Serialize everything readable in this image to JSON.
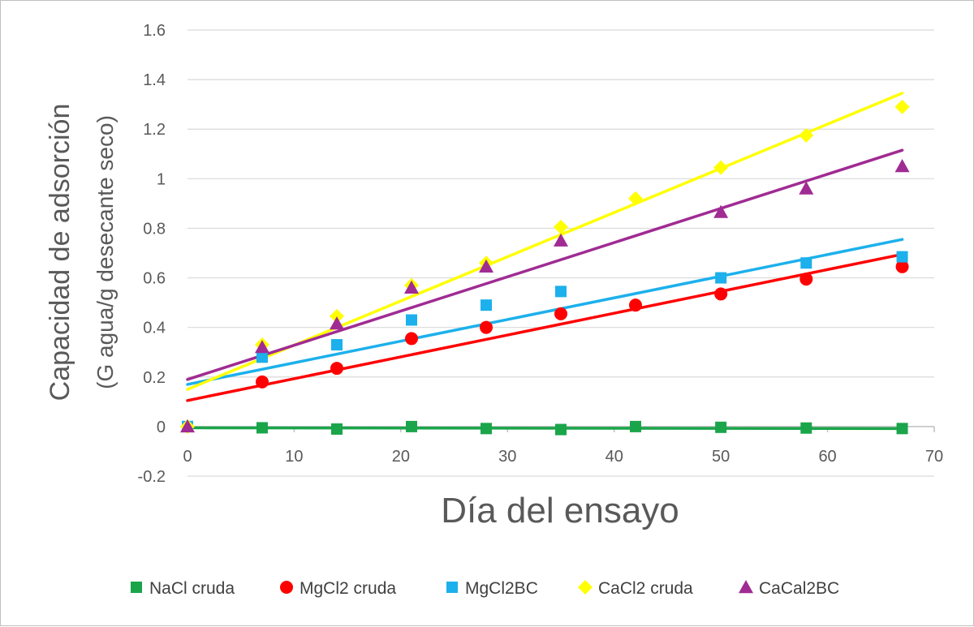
{
  "chart_data": {
    "type": "scatter",
    "title": "",
    "xlabel": "Día del ensayo",
    "ylabel": "Capacidad de adsorción",
    "ylabel_sub": "(G agua/g desecante seco)",
    "xlim": [
      0,
      70
    ],
    "ylim": [
      -0.2,
      1.6
    ],
    "x_ticks": [
      0,
      10,
      20,
      30,
      40,
      50,
      60,
      70
    ],
    "y_ticks": [
      1.6,
      1.4,
      1.2,
      1,
      0.8,
      0.6,
      0.4,
      0.2,
      0,
      -0.2
    ],
    "y_tick_labels": [
      "1.6",
      "1.4",
      "1.2",
      "1",
      "0.8",
      "0.6",
      "0.4",
      "0.2",
      "0",
      "-0.2"
    ],
    "grid": "horizontal",
    "trendline": "linear",
    "legend_position": "bottom",
    "series": [
      {
        "name": "NaCl cruda",
        "marker": "square",
        "color": "#1aa54a",
        "x": [
          0,
          7,
          14,
          21,
          28,
          35,
          42,
          50,
          58,
          67
        ],
        "y": [
          0.0,
          -0.005,
          -0.01,
          0.0,
          -0.008,
          -0.012,
          0.0,
          -0.003,
          -0.006,
          -0.008
        ]
      },
      {
        "name": "MgCl2 cruda",
        "marker": "circle",
        "color": "#ff0000",
        "x": [
          7,
          14,
          21,
          28,
          35,
          42,
          50,
          58,
          67
        ],
        "y": [
          0.18,
          0.235,
          0.355,
          0.4,
          0.455,
          0.49,
          0.535,
          0.595,
          0.645
        ]
      },
      {
        "name": "MgCl2BC",
        "marker": "square",
        "color": "#1cb0ec",
        "x": [
          0,
          7,
          14,
          21,
          28,
          35,
          50,
          58,
          67
        ],
        "y": [
          0.0,
          0.28,
          0.33,
          0.43,
          0.49,
          0.545,
          0.6,
          0.66,
          0.685
        ]
      },
      {
        "name": "CaCl2 cruda",
        "marker": "diamond",
        "color": "#ffff00",
        "x": [
          0,
          7,
          14,
          21,
          28,
          35,
          42,
          50,
          58,
          67
        ],
        "y": [
          0.0,
          0.33,
          0.445,
          0.57,
          0.66,
          0.805,
          0.92,
          1.045,
          1.175,
          1.29
        ]
      },
      {
        "name": "CaCal2BC",
        "marker": "triangle",
        "color": "#a02b93",
        "x": [
          0,
          7,
          14,
          21,
          28,
          35,
          50,
          58,
          67
        ],
        "y": [
          0.0,
          0.32,
          0.415,
          0.56,
          0.645,
          0.75,
          0.865,
          0.96,
          1.05
        ]
      }
    ],
    "trendlines": [
      {
        "series": "NaCl cruda",
        "x": [
          0,
          67
        ],
        "y": [
          -0.005,
          -0.008
        ]
      },
      {
        "series": "MgCl2 cruda",
        "x": [
          0,
          67
        ],
        "y": [
          0.105,
          0.695
        ]
      },
      {
        "series": "MgCl2BC",
        "x": [
          0,
          67
        ],
        "y": [
          0.17,
          0.755
        ]
      },
      {
        "series": "CaCl2 cruda",
        "x": [
          0,
          67
        ],
        "y": [
          0.15,
          1.345
        ]
      },
      {
        "series": "CaCal2BC",
        "x": [
          0,
          67
        ],
        "y": [
          0.19,
          1.115
        ]
      }
    ]
  }
}
